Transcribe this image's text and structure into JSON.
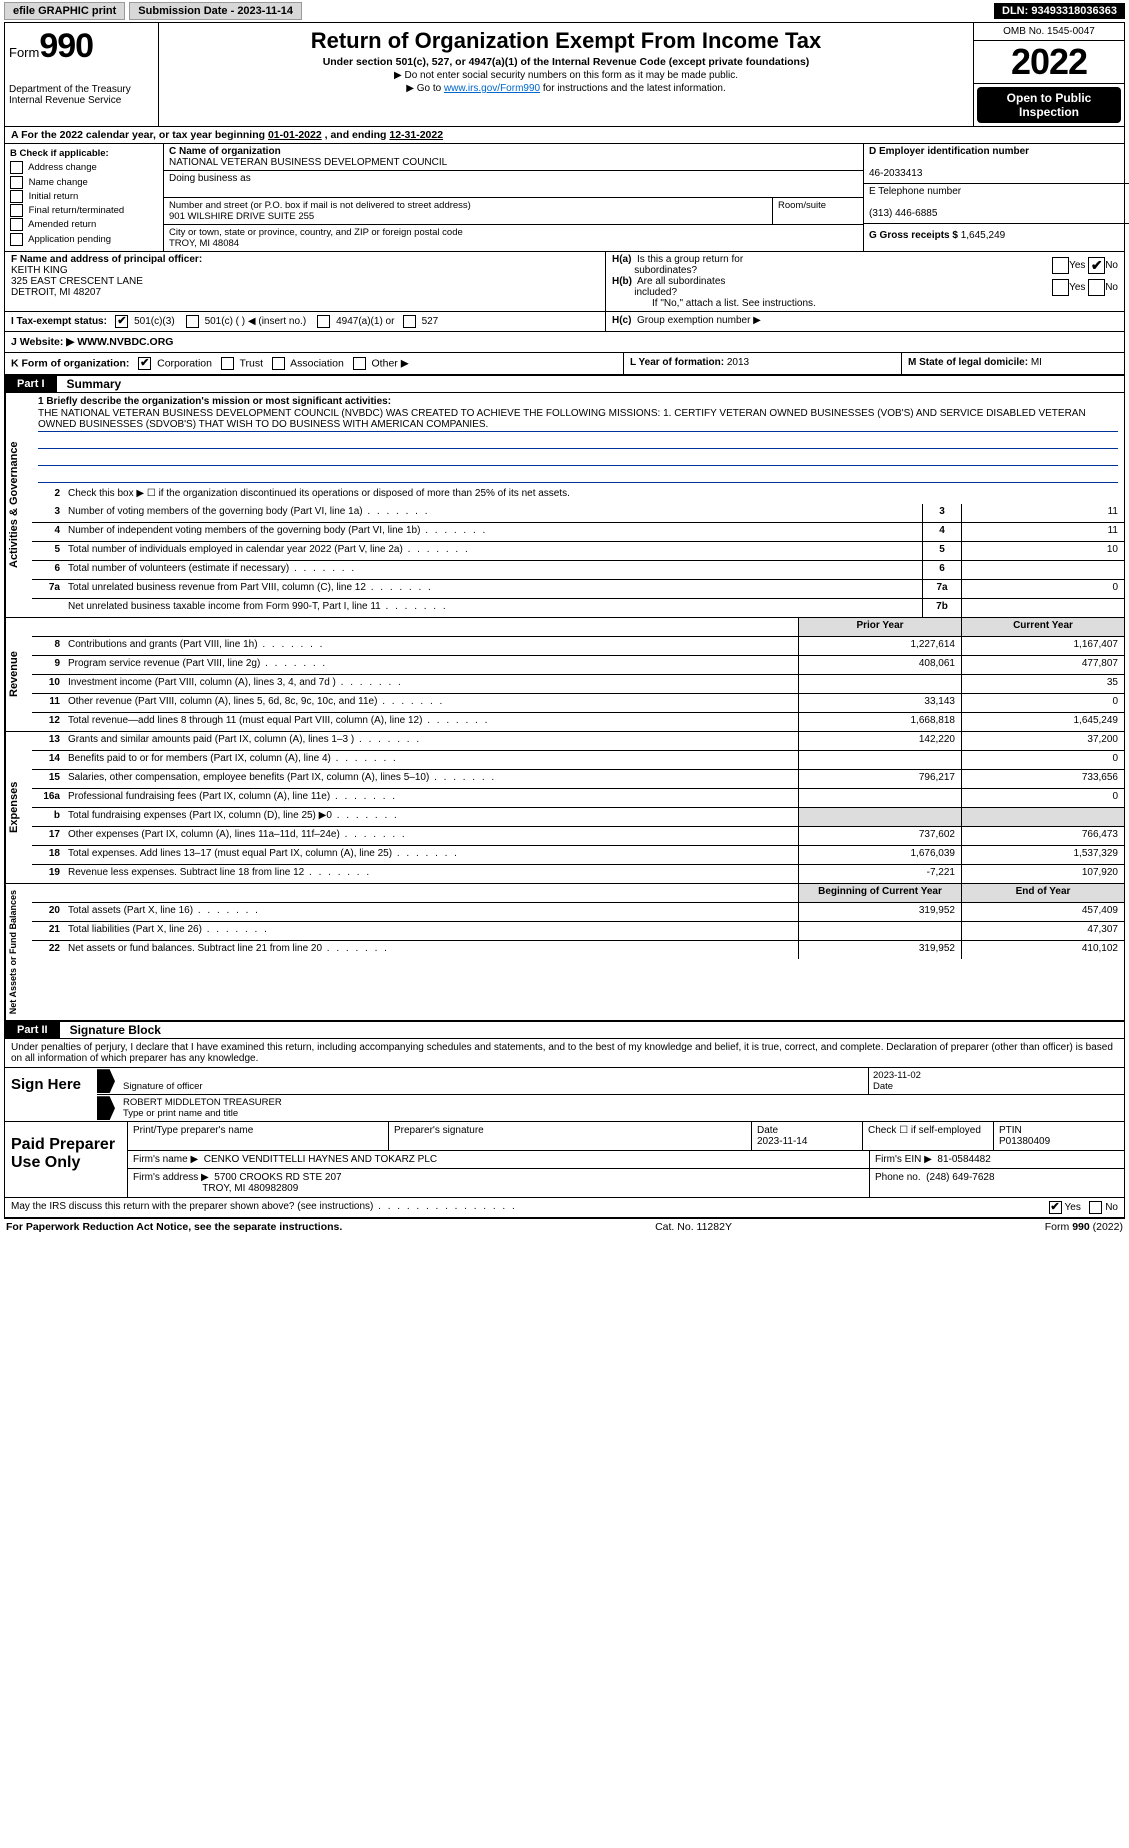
{
  "topbar": {
    "efile_label": "efile GRAPHIC print",
    "submission_label": "Submission Date - 2023-11-14",
    "dln_label": "DLN: 93493318036363"
  },
  "header": {
    "form_prefix": "Form",
    "form_number": "990",
    "dept": "Department of the Treasury",
    "irs": "Internal Revenue Service",
    "title": "Return of Organization Exempt From Income Tax",
    "sub": "Under section 501(c), 527, or 4947(a)(1) of the Internal Revenue Code (except private foundations)",
    "tri1": "▶ Do not enter social security numbers on this form as it may be made public.",
    "tri2_pre": "▶ Go to ",
    "tri2_link": "www.irs.gov/Form990",
    "tri2_post": " for instructions and the latest information.",
    "omb": "OMB No. 1545-0047",
    "year": "2022",
    "open": "Open to Public Inspection"
  },
  "period": {
    "label_a": "A For the 2022 calendar year, or tax year beginning ",
    "begin": "01-01-2022",
    "mid": " , and ending ",
    "end": "12-31-2022"
  },
  "sectionB": {
    "header": "B Check if applicable:",
    "items": [
      "Address change",
      "Name change",
      "Initial return",
      "Final return/terminated",
      "Amended return",
      "Application pending"
    ]
  },
  "sectionC": {
    "name_label": "C Name of organization",
    "name": "NATIONAL VETERAN BUSINESS DEVELOPMENT COUNCIL",
    "dba_label": "Doing business as",
    "dba": "",
    "street_label": "Number and street (or P.O. box if mail is not delivered to street address)",
    "room_label": "Room/suite",
    "street": "901 WILSHIRE DRIVE SUITE 255",
    "city_label": "City or town, state or province, country, and ZIP or foreign postal code",
    "city": "TROY, MI  48084"
  },
  "sectionD": {
    "label": "D Employer identification number",
    "value": "46-2033413"
  },
  "sectionE": {
    "label": "E Telephone number",
    "value": "(313) 446-6885"
  },
  "sectionG": {
    "label": "G Gross receipts $",
    "value": "1,645,249"
  },
  "sectionF": {
    "label": "F Name and address of principal officer:",
    "name": "KEITH KING",
    "addr1": "325 EAST CRESCENT LANE",
    "addr2": "DETROIT, MI  48207"
  },
  "sectionH": {
    "ha_label": "H(a)  Is this a group return for subordinates?",
    "hb_label": "H(b)  Are all subordinates included?",
    "hb_note": "If \"No,\" attach a list. See instructions.",
    "hc_label": "H(c)  Group exemption number ▶",
    "yes": "Yes",
    "no": "No"
  },
  "sectionI": {
    "label": "I  Tax-exempt status:",
    "opt1": "501(c)(3)",
    "opt2": "501(c) (   ) ◀ (insert no.)",
    "opt3": "4947(a)(1) or",
    "opt4": "527"
  },
  "sectionJ": {
    "label": "J  Website: ▶ ",
    "value": "WWW.NVBDC.ORG"
  },
  "sectionK": {
    "label": "K Form of organization:",
    "opts": [
      "Corporation",
      "Trust",
      "Association",
      "Other ▶"
    ]
  },
  "sectionL": {
    "label": "L Year of formation: ",
    "value": "2013"
  },
  "sectionM": {
    "label": "M State of legal domicile: ",
    "value": "MI"
  },
  "part1": {
    "tab": "Part I",
    "title": "Summary",
    "mission_label": "1  Briefly describe the organization's mission or most significant activities:",
    "mission": "THE NATIONAL VETERAN BUSINESS DEVELOPMENT COUNCIL (NVBDC) WAS CREATED TO ACHIEVE THE FOLLOWING MISSIONS: 1. CERTIFY VETERAN OWNED BUSINESSES (VOB'S) AND SERVICE DISABLED VETERAN OWNED BUSINESSES (SDVOB'S) THAT WISH TO DO BUSINESS WITH AMERICAN COMPANIES.",
    "line2": "Check this box ▶ ☐  if the organization discontinued its operations or disposed of more than 25% of its net assets.",
    "side_gov": "Activities & Governance",
    "side_rev": "Revenue",
    "side_exp": "Expenses",
    "side_net": "Net Assets or Fund Balances",
    "prior_year": "Prior Year",
    "current_year": "Current Year",
    "boy": "Beginning of Current Year",
    "eoy": "End of Year",
    "rows_gov": [
      {
        "n": "3",
        "d": "Number of voting members of the governing body (Part VI, line 1a)",
        "box": "3",
        "v": "11"
      },
      {
        "n": "4",
        "d": "Number of independent voting members of the governing body (Part VI, line 1b)",
        "box": "4",
        "v": "11"
      },
      {
        "n": "5",
        "d": "Total number of individuals employed in calendar year 2022 (Part V, line 2a)",
        "box": "5",
        "v": "10"
      },
      {
        "n": "6",
        "d": "Total number of volunteers (estimate if necessary)",
        "box": "6",
        "v": ""
      },
      {
        "n": "7a",
        "d": "Total unrelated business revenue from Part VIII, column (C), line 12",
        "box": "7a",
        "v": "0"
      },
      {
        "n": "",
        "d": "Net unrelated business taxable income from Form 990-T, Part I, line 11",
        "box": "7b",
        "v": ""
      }
    ],
    "rows_rev": [
      {
        "n": "8",
        "d": "Contributions and grants (Part VIII, line 1h)",
        "p": "1,227,614",
        "c": "1,167,407"
      },
      {
        "n": "9",
        "d": "Program service revenue (Part VIII, line 2g)",
        "p": "408,061",
        "c": "477,807"
      },
      {
        "n": "10",
        "d": "Investment income (Part VIII, column (A), lines 3, 4, and 7d )",
        "p": "",
        "c": "35"
      },
      {
        "n": "11",
        "d": "Other revenue (Part VIII, column (A), lines 5, 6d, 8c, 9c, 10c, and 11e)",
        "p": "33,143",
        "c": "0"
      },
      {
        "n": "12",
        "d": "Total revenue—add lines 8 through 11 (must equal Part VIII, column (A), line 12)",
        "p": "1,668,818",
        "c": "1,645,249"
      }
    ],
    "rows_exp": [
      {
        "n": "13",
        "d": "Grants and similar amounts paid (Part IX, column (A), lines 1–3 )",
        "p": "142,220",
        "c": "37,200"
      },
      {
        "n": "14",
        "d": "Benefits paid to or for members (Part IX, column (A), line 4)",
        "p": "",
        "c": "0"
      },
      {
        "n": "15",
        "d": "Salaries, other compensation, employee benefits (Part IX, column (A), lines 5–10)",
        "p": "796,217",
        "c": "733,656"
      },
      {
        "n": "16a",
        "d": "Professional fundraising fees (Part IX, column (A), line 11e)",
        "p": "",
        "c": "0"
      },
      {
        "n": "b",
        "d": "Total fundraising expenses (Part IX, column (D), line 25) ▶0",
        "p": "grey",
        "c": "grey"
      },
      {
        "n": "17",
        "d": "Other expenses (Part IX, column (A), lines 11a–11d, 11f–24e)",
        "p": "737,602",
        "c": "766,473"
      },
      {
        "n": "18",
        "d": "Total expenses. Add lines 13–17 (must equal Part IX, column (A), line 25)",
        "p": "1,676,039",
        "c": "1,537,329"
      },
      {
        "n": "19",
        "d": "Revenue less expenses. Subtract line 18 from line 12",
        "p": "-7,221",
        "c": "107,920"
      }
    ],
    "rows_net": [
      {
        "n": "20",
        "d": "Total assets (Part X, line 16)",
        "p": "319,952",
        "c": "457,409"
      },
      {
        "n": "21",
        "d": "Total liabilities (Part X, line 26)",
        "p": "",
        "c": "47,307"
      },
      {
        "n": "22",
        "d": "Net assets or fund balances. Subtract line 21 from line 20",
        "p": "319,952",
        "c": "410,102"
      }
    ]
  },
  "part2": {
    "tab": "Part II",
    "title": "Signature Block",
    "decl": "Under penalties of perjury, I declare that I have examined this return, including accompanying schedules and statements, and to the best of my knowledge and belief, it is true, correct, and complete. Declaration of preparer (other than officer) is based on all information of which preparer has any knowledge."
  },
  "sign": {
    "label": "Sign Here",
    "sig_officer_lbl": "Signature of officer",
    "date_lbl": "Date",
    "date": "2023-11-02",
    "name": "ROBERT MIDDLETON  TREASURER",
    "name_lbl": "Type or print name and title"
  },
  "prep": {
    "label": "Paid Preparer Use Only",
    "pt_name_lbl": "Print/Type preparer's name",
    "pt_name": "",
    "sig_lbl": "Preparer's signature",
    "date_lbl": "Date",
    "date": "2023-11-14",
    "check_lbl": "Check ☐ if self-employed",
    "ptin_lbl": "PTIN",
    "ptin": "P01380409",
    "firm_name_lbl": "Firm's name    ▶",
    "firm_name": "CENKO VENDITTELLI HAYNES AND TOKARZ PLC",
    "firm_ein_lbl": "Firm's EIN ▶",
    "firm_ein": "81-0584482",
    "firm_addr_lbl": "Firm's address ▶",
    "firm_addr1": "5700 CROOKS RD STE 207",
    "firm_addr2": "TROY, MI  480982809",
    "phone_lbl": "Phone no.",
    "phone": "(248) 649-7628"
  },
  "discuss": {
    "q": "May the IRS discuss this return with the preparer shown above? (see instructions)",
    "yes": "Yes",
    "no": "No"
  },
  "footer": {
    "left": "For Paperwork Reduction Act Notice, see the separate instructions.",
    "mid": "Cat. No. 11282Y",
    "right_pre": "Form ",
    "right_num": "990",
    "right_post": " (2022)"
  }
}
